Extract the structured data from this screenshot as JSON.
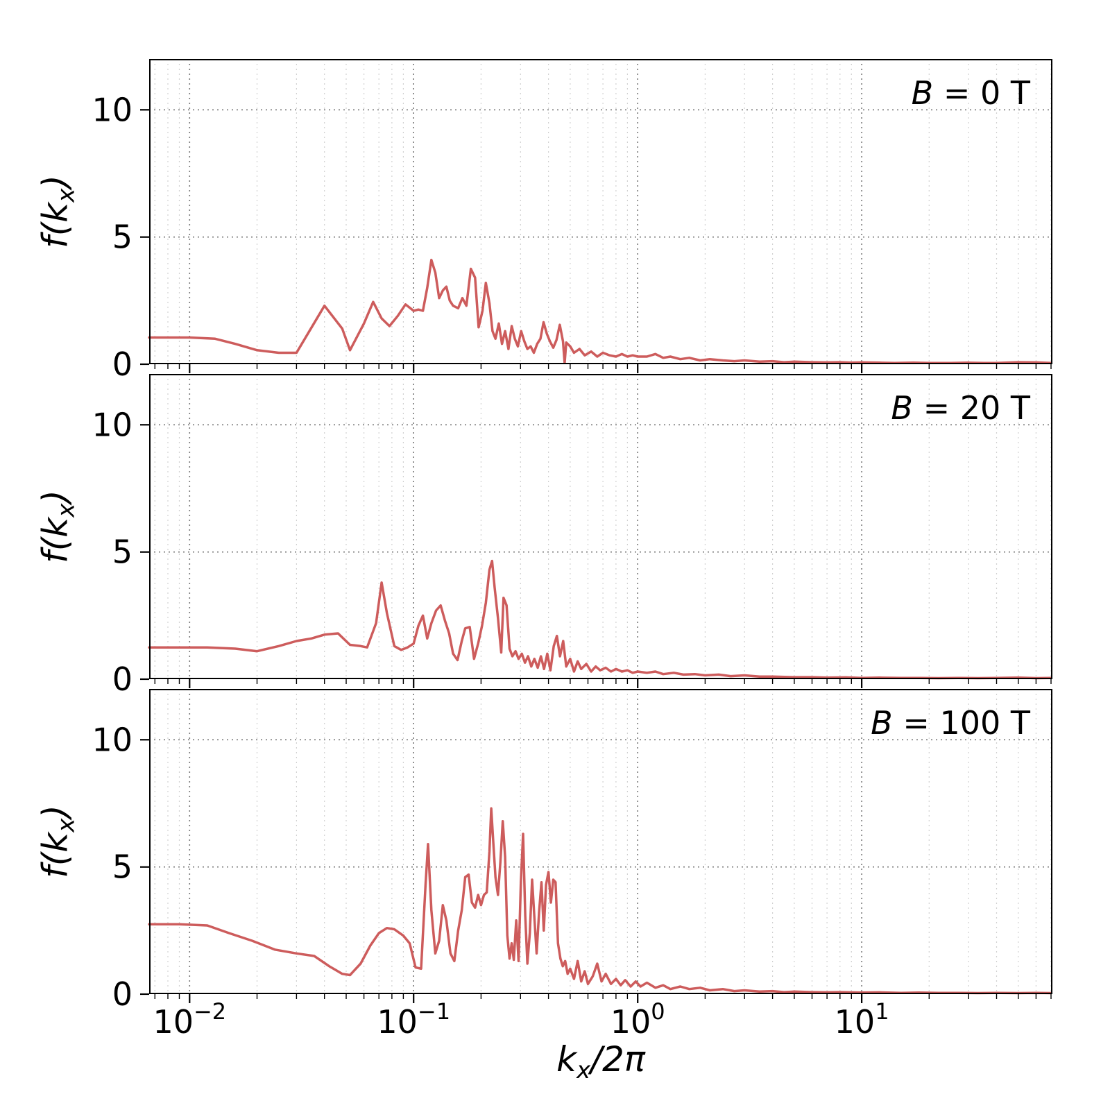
{
  "figure": {
    "background": "#ffffff",
    "line_color": "#CD5C5C",
    "grid_major_color": "#777777",
    "grid_minor_color": "#d0d0d0",
    "frame_color": "#000000"
  },
  "axes": {
    "x": {
      "scale": "log",
      "min": 0.0066,
      "max": 71,
      "major_tick_values": [
        0.01,
        0.1,
        1,
        10
      ],
      "major_tick_labels": [
        {
          "base": "10",
          "exp": "−2"
        },
        {
          "base": "10",
          "exp": "−1"
        },
        {
          "base": "10",
          "exp": "0"
        },
        {
          "base": "10",
          "exp": "1"
        }
      ],
      "label": {
        "pre": "k",
        "sub": "x",
        "post": "/2π"
      }
    },
    "y": {
      "min": 0,
      "max": 12,
      "tick_values": [
        0,
        5,
        10
      ],
      "tick_labels": [
        "0",
        "5",
        "10"
      ],
      "label": {
        "pre": "f(k",
        "sub": "x",
        "post": ")"
      }
    }
  },
  "panels": [
    {
      "label": {
        "var": "B",
        "rest": "= 0 T"
      }
    },
    {
      "label": {
        "var": "B",
        "rest": "= 20 T"
      }
    },
    {
      "label": {
        "var": "B",
        "rest": "= 100 T"
      }
    }
  ],
  "chart_data": [
    {
      "type": "line",
      "name": "B = 0 T",
      "color": "#CD5C5C",
      "x_scale": "log",
      "xlabel": "k_x/2pi",
      "ylabel": "f(k_x)",
      "xlim": [
        0.0066,
        71
      ],
      "ylim": [
        0,
        12
      ],
      "points": [
        [
          0.0066,
          1.05
        ],
        [
          0.008,
          1.05
        ],
        [
          0.01,
          1.05
        ],
        [
          0.013,
          1.0
        ],
        [
          0.016,
          0.8
        ],
        [
          0.02,
          0.55
        ],
        [
          0.025,
          0.45
        ],
        [
          0.03,
          0.45
        ],
        [
          0.04,
          2.3
        ],
        [
          0.048,
          1.4
        ],
        [
          0.052,
          0.55
        ],
        [
          0.06,
          1.6
        ],
        [
          0.066,
          2.45
        ],
        [
          0.072,
          1.8
        ],
        [
          0.078,
          1.5
        ],
        [
          0.085,
          1.9
        ],
        [
          0.092,
          2.35
        ],
        [
          0.1,
          2.1
        ],
        [
          0.105,
          2.15
        ],
        [
          0.11,
          2.1
        ],
        [
          0.115,
          3.0
        ],
        [
          0.12,
          4.1
        ],
        [
          0.125,
          3.6
        ],
        [
          0.13,
          2.6
        ],
        [
          0.135,
          2.9
        ],
        [
          0.14,
          3.05
        ],
        [
          0.145,
          2.5
        ],
        [
          0.15,
          2.3
        ],
        [
          0.158,
          2.2
        ],
        [
          0.165,
          2.6
        ],
        [
          0.172,
          2.3
        ],
        [
          0.18,
          3.75
        ],
        [
          0.188,
          3.4
        ],
        [
          0.195,
          1.45
        ],
        [
          0.203,
          2.1
        ],
        [
          0.21,
          3.2
        ],
        [
          0.218,
          2.4
        ],
        [
          0.225,
          1.3
        ],
        [
          0.232,
          1.0
        ],
        [
          0.24,
          1.6
        ],
        [
          0.248,
          0.8
        ],
        [
          0.256,
          1.3
        ],
        [
          0.265,
          0.6
        ],
        [
          0.274,
          1.5
        ],
        [
          0.283,
          1.0
        ],
        [
          0.292,
          0.7
        ],
        [
          0.302,
          1.3
        ],
        [
          0.312,
          0.9
        ],
        [
          0.322,
          0.6
        ],
        [
          0.333,
          0.7
        ],
        [
          0.344,
          0.45
        ],
        [
          0.356,
          0.8
        ],
        [
          0.368,
          1.0
        ],
        [
          0.38,
          1.65
        ],
        [
          0.393,
          1.2
        ],
        [
          0.406,
          0.9
        ],
        [
          0.42,
          0.65
        ],
        [
          0.434,
          0.95
        ],
        [
          0.449,
          1.55
        ],
        [
          0.464,
          0.9
        ],
        [
          0.472,
          0.05
        ],
        [
          0.48,
          0.85
        ],
        [
          0.5,
          0.7
        ],
        [
          0.52,
          0.45
        ],
        [
          0.55,
          0.6
        ],
        [
          0.58,
          0.35
        ],
        [
          0.62,
          0.5
        ],
        [
          0.66,
          0.3
        ],
        [
          0.7,
          0.45
        ],
        [
          0.75,
          0.35
        ],
        [
          0.8,
          0.3
        ],
        [
          0.85,
          0.4
        ],
        [
          0.9,
          0.3
        ],
        [
          0.95,
          0.35
        ],
        [
          1.0,
          0.3
        ],
        [
          1.1,
          0.3
        ],
        [
          1.2,
          0.4
        ],
        [
          1.3,
          0.25
        ],
        [
          1.4,
          0.3
        ],
        [
          1.55,
          0.2
        ],
        [
          1.7,
          0.25
        ],
        [
          1.9,
          0.15
        ],
        [
          2.1,
          0.2
        ],
        [
          2.4,
          0.15
        ],
        [
          2.7,
          0.12
        ],
        [
          3.0,
          0.15
        ],
        [
          3.5,
          0.1
        ],
        [
          4.0,
          0.12
        ],
        [
          4.5,
          0.08
        ],
        [
          5.0,
          0.1
        ],
        [
          6.0,
          0.08
        ],
        [
          7.0,
          0.07
        ],
        [
          8.0,
          0.08
        ],
        [
          9.0,
          0.06
        ],
        [
          10,
          0.07
        ],
        [
          12,
          0.06
        ],
        [
          14,
          0.05
        ],
        [
          17,
          0.06
        ],
        [
          20,
          0.05
        ],
        [
          25,
          0.05
        ],
        [
          30,
          0.06
        ],
        [
          35,
          0.05
        ],
        [
          40,
          0.05
        ],
        [
          50,
          0.08
        ],
        [
          60,
          0.07
        ],
        [
          70,
          0.05
        ]
      ]
    },
    {
      "type": "line",
      "name": "B = 20 T",
      "color": "#CD5C5C",
      "x_scale": "log",
      "xlabel": "k_x/2pi",
      "ylabel": "f(k_x)",
      "xlim": [
        0.0066,
        71
      ],
      "ylim": [
        0,
        12
      ],
      "points": [
        [
          0.0066,
          1.25
        ],
        [
          0.009,
          1.25
        ],
        [
          0.012,
          1.25
        ],
        [
          0.016,
          1.2
        ],
        [
          0.02,
          1.1
        ],
        [
          0.025,
          1.3
        ],
        [
          0.03,
          1.5
        ],
        [
          0.035,
          1.6
        ],
        [
          0.04,
          1.75
        ],
        [
          0.046,
          1.8
        ],
        [
          0.052,
          1.35
        ],
        [
          0.058,
          1.3
        ],
        [
          0.062,
          1.25
        ],
        [
          0.068,
          2.2
        ],
        [
          0.072,
          3.8
        ],
        [
          0.076,
          2.6
        ],
        [
          0.082,
          1.3
        ],
        [
          0.088,
          1.15
        ],
        [
          0.094,
          1.25
        ],
        [
          0.1,
          1.4
        ],
        [
          0.105,
          2.1
        ],
        [
          0.11,
          2.5
        ],
        [
          0.115,
          1.6
        ],
        [
          0.12,
          2.2
        ],
        [
          0.126,
          2.7
        ],
        [
          0.132,
          2.9
        ],
        [
          0.138,
          2.3
        ],
        [
          0.144,
          1.8
        ],
        [
          0.15,
          1.0
        ],
        [
          0.157,
          0.75
        ],
        [
          0.164,
          1.5
        ],
        [
          0.17,
          2.0
        ],
        [
          0.178,
          2.05
        ],
        [
          0.186,
          0.8
        ],
        [
          0.194,
          1.4
        ],
        [
          0.202,
          2.1
        ],
        [
          0.21,
          3.0
        ],
        [
          0.218,
          4.3
        ],
        [
          0.224,
          4.65
        ],
        [
          0.23,
          3.6
        ],
        [
          0.238,
          2.4
        ],
        [
          0.246,
          1.05
        ],
        [
          0.252,
          3.2
        ],
        [
          0.26,
          2.9
        ],
        [
          0.268,
          1.2
        ],
        [
          0.276,
          0.9
        ],
        [
          0.285,
          1.1
        ],
        [
          0.294,
          0.8
        ],
        [
          0.304,
          1.0
        ],
        [
          0.314,
          0.65
        ],
        [
          0.324,
          0.9
        ],
        [
          0.335,
          0.5
        ],
        [
          0.346,
          0.8
        ],
        [
          0.358,
          0.45
        ],
        [
          0.37,
          0.9
        ],
        [
          0.382,
          0.4
        ],
        [
          0.395,
          1.0
        ],
        [
          0.408,
          0.35
        ],
        [
          0.422,
          1.3
        ],
        [
          0.436,
          1.7
        ],
        [
          0.45,
          0.9
        ],
        [
          0.465,
          1.5
        ],
        [
          0.48,
          0.5
        ],
        [
          0.5,
          0.8
        ],
        [
          0.52,
          0.3
        ],
        [
          0.54,
          0.7
        ],
        [
          0.56,
          0.4
        ],
        [
          0.59,
          0.6
        ],
        [
          0.62,
          0.3
        ],
        [
          0.65,
          0.5
        ],
        [
          0.68,
          0.35
        ],
        [
          0.72,
          0.45
        ],
        [
          0.76,
          0.3
        ],
        [
          0.8,
          0.4
        ],
        [
          0.85,
          0.3
        ],
        [
          0.9,
          0.35
        ],
        [
          0.95,
          0.25
        ],
        [
          1.0,
          0.3
        ],
        [
          1.1,
          0.25
        ],
        [
          1.2,
          0.3
        ],
        [
          1.3,
          0.2
        ],
        [
          1.45,
          0.25
        ],
        [
          1.6,
          0.18
        ],
        [
          1.8,
          0.2
        ],
        [
          2.0,
          0.15
        ],
        [
          2.3,
          0.18
        ],
        [
          2.6,
          0.12
        ],
        [
          3.0,
          0.15
        ],
        [
          3.5,
          0.1
        ],
        [
          4.0,
          0.1
        ],
        [
          5.0,
          0.08
        ],
        [
          6.0,
          0.08
        ],
        [
          7.0,
          0.06
        ],
        [
          8.5,
          0.07
        ],
        [
          10,
          0.05
        ],
        [
          12,
          0.06
        ],
        [
          15,
          0.05
        ],
        [
          18,
          0.05
        ],
        [
          22,
          0.04
        ],
        [
          27,
          0.05
        ],
        [
          33,
          0.04
        ],
        [
          40,
          0.05
        ],
        [
          50,
          0.06
        ],
        [
          60,
          0.04
        ],
        [
          70,
          0.05
        ]
      ]
    },
    {
      "type": "line",
      "name": "B = 100 T",
      "color": "#CD5C5C",
      "x_scale": "log",
      "xlabel": "k_x/2pi",
      "ylabel": "f(k_x)",
      "xlim": [
        0.0066,
        71
      ],
      "ylim": [
        0,
        12
      ],
      "points": [
        [
          0.0066,
          2.75
        ],
        [
          0.009,
          2.75
        ],
        [
          0.012,
          2.7
        ],
        [
          0.015,
          2.4
        ],
        [
          0.019,
          2.1
        ],
        [
          0.024,
          1.75
        ],
        [
          0.03,
          1.6
        ],
        [
          0.036,
          1.5
        ],
        [
          0.042,
          1.1
        ],
        [
          0.048,
          0.8
        ],
        [
          0.052,
          0.75
        ],
        [
          0.058,
          1.2
        ],
        [
          0.064,
          1.9
        ],
        [
          0.07,
          2.4
        ],
        [
          0.076,
          2.6
        ],
        [
          0.082,
          2.55
        ],
        [
          0.09,
          2.3
        ],
        [
          0.096,
          2.0
        ],
        [
          0.102,
          1.05
        ],
        [
          0.108,
          1.0
        ],
        [
          0.113,
          4.3
        ],
        [
          0.116,
          5.9
        ],
        [
          0.12,
          3.3
        ],
        [
          0.125,
          1.6
        ],
        [
          0.13,
          2.1
        ],
        [
          0.135,
          3.5
        ],
        [
          0.14,
          2.9
        ],
        [
          0.146,
          1.6
        ],
        [
          0.152,
          1.3
        ],
        [
          0.158,
          2.5
        ],
        [
          0.164,
          3.3
        ],
        [
          0.17,
          4.6
        ],
        [
          0.176,
          4.7
        ],
        [
          0.182,
          3.6
        ],
        [
          0.188,
          3.4
        ],
        [
          0.194,
          3.9
        ],
        [
          0.2,
          3.5
        ],
        [
          0.206,
          3.9
        ],
        [
          0.212,
          4.0
        ],
        [
          0.218,
          5.6
        ],
        [
          0.222,
          7.3
        ],
        [
          0.227,
          5.9
        ],
        [
          0.232,
          4.6
        ],
        [
          0.238,
          3.9
        ],
        [
          0.244,
          5.2
        ],
        [
          0.25,
          6.8
        ],
        [
          0.256,
          5.4
        ],
        [
          0.262,
          2.3
        ],
        [
          0.268,
          1.4
        ],
        [
          0.274,
          2.0
        ],
        [
          0.28,
          1.35
        ],
        [
          0.287,
          2.9
        ],
        [
          0.294,
          1.3
        ],
        [
          0.301,
          4.4
        ],
        [
          0.308,
          6.3
        ],
        [
          0.315,
          3.1
        ],
        [
          0.322,
          1.2
        ],
        [
          0.33,
          2.4
        ],
        [
          0.338,
          4.5
        ],
        [
          0.346,
          3.0
        ],
        [
          0.354,
          1.6
        ],
        [
          0.363,
          3.2
        ],
        [
          0.372,
          4.4
        ],
        [
          0.381,
          2.5
        ],
        [
          0.39,
          4.3
        ],
        [
          0.4,
          4.8
        ],
        [
          0.41,
          3.6
        ],
        [
          0.42,
          4.5
        ],
        [
          0.43,
          4.4
        ],
        [
          0.441,
          2.0
        ],
        [
          0.452,
          1.4
        ],
        [
          0.463,
          1.1
        ],
        [
          0.475,
          1.3
        ],
        [
          0.487,
          0.8
        ],
        [
          0.5,
          1.0
        ],
        [
          0.52,
          0.6
        ],
        [
          0.54,
          1.3
        ],
        [
          0.56,
          0.5
        ],
        [
          0.58,
          0.9
        ],
        [
          0.6,
          0.4
        ],
        [
          0.63,
          0.7
        ],
        [
          0.66,
          1.2
        ],
        [
          0.69,
          0.5
        ],
        [
          0.72,
          0.8
        ],
        [
          0.76,
          0.4
        ],
        [
          0.8,
          0.6
        ],
        [
          0.84,
          0.35
        ],
        [
          0.88,
          0.55
        ],
        [
          0.93,
          0.3
        ],
        [
          0.98,
          0.5
        ],
        [
          1.03,
          0.3
        ],
        [
          1.1,
          0.45
        ],
        [
          1.2,
          0.25
        ],
        [
          1.3,
          0.35
        ],
        [
          1.4,
          0.2
        ],
        [
          1.55,
          0.3
        ],
        [
          1.7,
          0.2
        ],
        [
          1.9,
          0.25
        ],
        [
          2.1,
          0.15
        ],
        [
          2.4,
          0.2
        ],
        [
          2.7,
          0.12
        ],
        [
          3.0,
          0.15
        ],
        [
          3.5,
          0.1
        ],
        [
          4.0,
          0.12
        ],
        [
          4.5,
          0.08
        ],
        [
          5.0,
          0.1
        ],
        [
          6.0,
          0.08
        ],
        [
          7.0,
          0.07
        ],
        [
          8.0,
          0.08
        ],
        [
          10,
          0.06
        ],
        [
          12,
          0.07
        ],
        [
          15,
          0.05
        ],
        [
          18,
          0.06
        ],
        [
          22,
          0.05
        ],
        [
          27,
          0.05
        ],
        [
          33,
          0.04
        ],
        [
          40,
          0.05
        ],
        [
          50,
          0.04
        ],
        [
          60,
          0.05
        ],
        [
          70,
          0.04
        ]
      ]
    }
  ]
}
